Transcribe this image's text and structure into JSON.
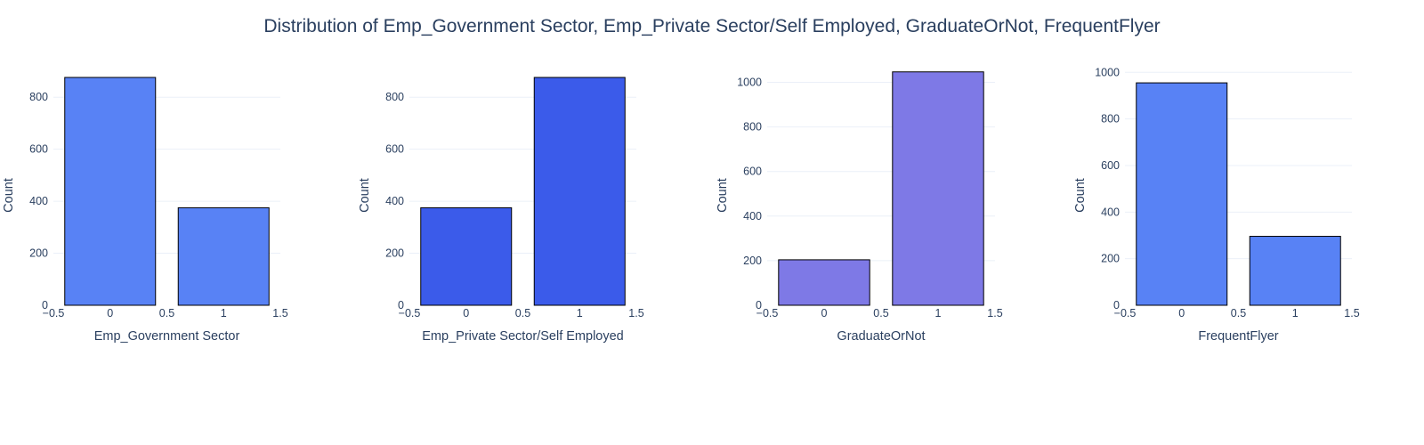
{
  "title": "Distribution of Emp_Government Sector, Emp_Private Sector/Self Employed, GraduateOrNot, FrequentFlyer",
  "chart_data": [
    {
      "type": "bar",
      "x": [
        0,
        1
      ],
      "values": [
        876,
        375
      ],
      "xlabel": "Emp_Government Sector",
      "ylabel": "Count",
      "xlim": [
        -0.5,
        1.5
      ],
      "ylim": [
        0,
        900
      ],
      "xticks": [
        "−0.5",
        "0",
        "0.5",
        "1",
        "1.5"
      ],
      "yticks": [
        0,
        200,
        400,
        600,
        800
      ],
      "color": "#5882f5",
      "grid": true
    },
    {
      "type": "bar",
      "x": [
        0,
        1
      ],
      "values": [
        375,
        876
      ],
      "xlabel": "Emp_Private Sector/Self Employed",
      "ylabel": "Count",
      "xlim": [
        -0.5,
        1.5
      ],
      "ylim": [
        0,
        900
      ],
      "xticks": [
        "−0.5",
        "0",
        "0.5",
        "1",
        "1.5"
      ],
      "yticks": [
        0,
        200,
        400,
        600,
        800
      ],
      "color": "#3b5bea",
      "grid": true
    },
    {
      "type": "bar",
      "x": [
        0,
        1
      ],
      "values": [
        204,
        1047
      ],
      "xlabel": "GraduateOrNot",
      "ylabel": "Count",
      "xlim": [
        -0.5,
        1.5
      ],
      "ylim": [
        0,
        1050
      ],
      "xticks": [
        "−0.5",
        "0",
        "0.5",
        "1",
        "1.5"
      ],
      "yticks": [
        0,
        200,
        400,
        600,
        800,
        1000
      ],
      "color": "#7e79e6",
      "grid": true
    },
    {
      "type": "bar",
      "x": [
        0,
        1
      ],
      "values": [
        955,
        296
      ],
      "xlabel": "FrequentFlyer",
      "ylabel": "Count",
      "xlim": [
        -0.5,
        1.5
      ],
      "ylim": [
        0,
        1005
      ],
      "xticks": [
        "−0.5",
        "0",
        "0.5",
        "1",
        "1.5"
      ],
      "yticks": [
        0,
        200,
        400,
        600,
        800,
        1000
      ],
      "color": "#5882f5",
      "grid": true
    }
  ]
}
